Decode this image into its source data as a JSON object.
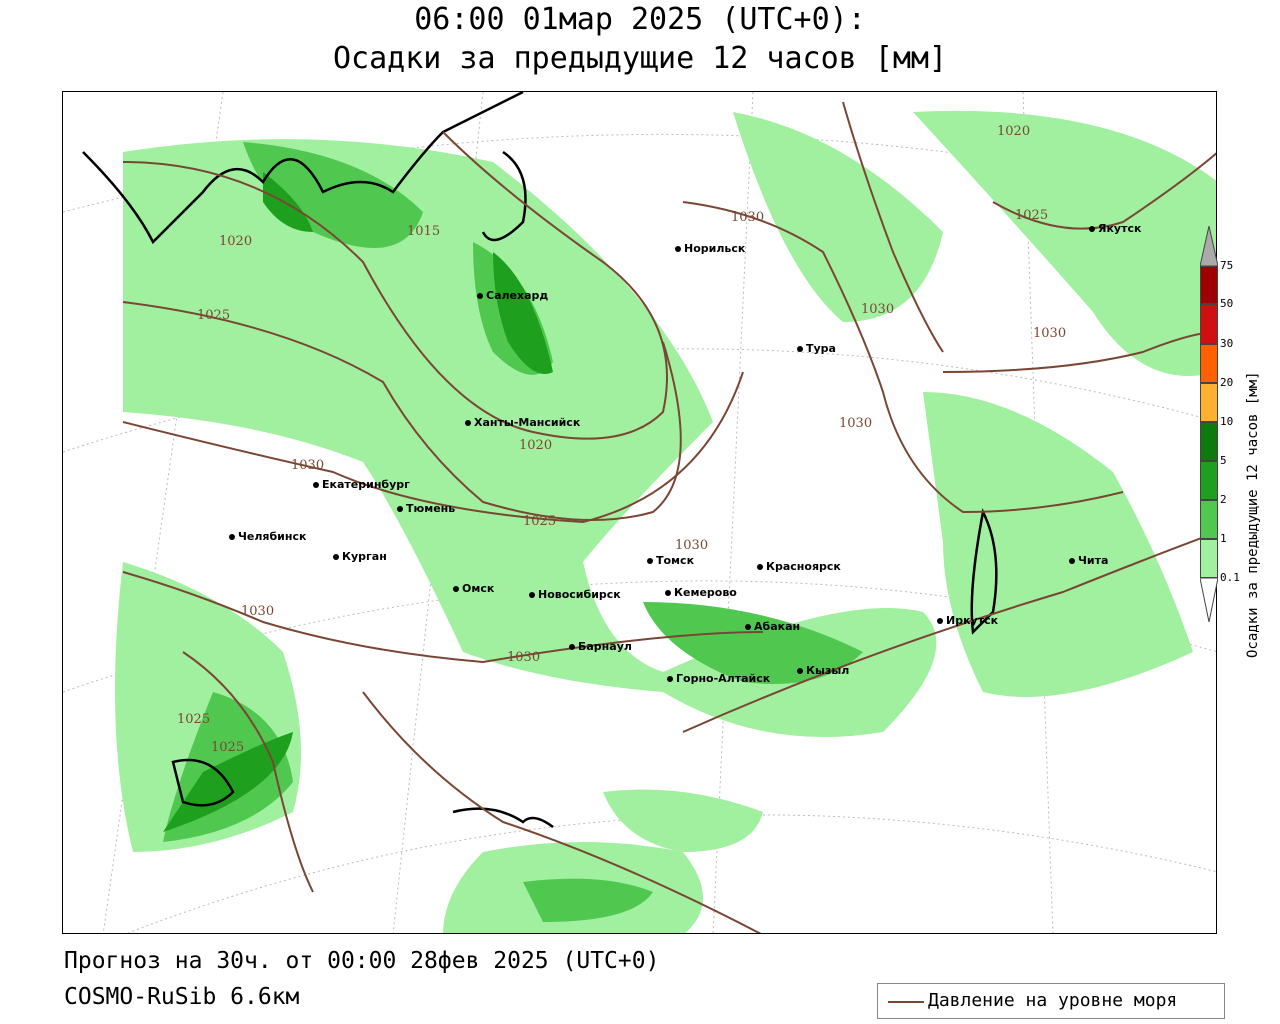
{
  "header": {
    "title_line1": "06:00 01мар 2025 (UTC+0):",
    "title_line2": "Осадки за предыдущие 12 часов [мм]"
  },
  "footer": {
    "forecast": "Прогноз на 30ч. от 00:00 28фев 2025 (UTC+0)",
    "model": "COSMO-RuSib 6.6км"
  },
  "legend": {
    "pressure_label": "Давление на уровне моря",
    "pressure_color": "#7a4634"
  },
  "colorbar": {
    "label": "Осадки за предыдущие 12 часов [мм]",
    "ticks": [
      "75",
      "50",
      "30",
      "20",
      "10",
      "5",
      "2",
      "1",
      "0.1"
    ],
    "colors": [
      "#a00000",
      "#d01010",
      "#ff6000",
      "#ffb030",
      "#0c7a0c",
      "#1ea01e",
      "#50c850",
      "#a0f0a0"
    ]
  },
  "cities": [
    {
      "name": "Норильск"
    },
    {
      "name": "Якутск"
    },
    {
      "name": "Салехард"
    },
    {
      "name": "Тура"
    },
    {
      "name": "Ханты-Мансийск"
    },
    {
      "name": "Екатеринбург"
    },
    {
      "name": "Тюмень"
    },
    {
      "name": "Челябинск"
    },
    {
      "name": "Курган"
    },
    {
      "name": "Томск"
    },
    {
      "name": "Красноярск"
    },
    {
      "name": "Омск"
    },
    {
      "name": "Новосибирск"
    },
    {
      "name": "Кемерово"
    },
    {
      "name": "Абакан"
    },
    {
      "name": "Иркутск"
    },
    {
      "name": "Чита"
    },
    {
      "name": "Барнаул"
    },
    {
      "name": "Кызыл"
    },
    {
      "name": "Горно-Алтайск"
    }
  ],
  "isobars": [
    "1020",
    "1015",
    "1025",
    "1030",
    "1020",
    "1025",
    "1030",
    "1020",
    "1025",
    "1030",
    "1030",
    "1030",
    "1030",
    "1030",
    "1025",
    "1025",
    "1030"
  ]
}
